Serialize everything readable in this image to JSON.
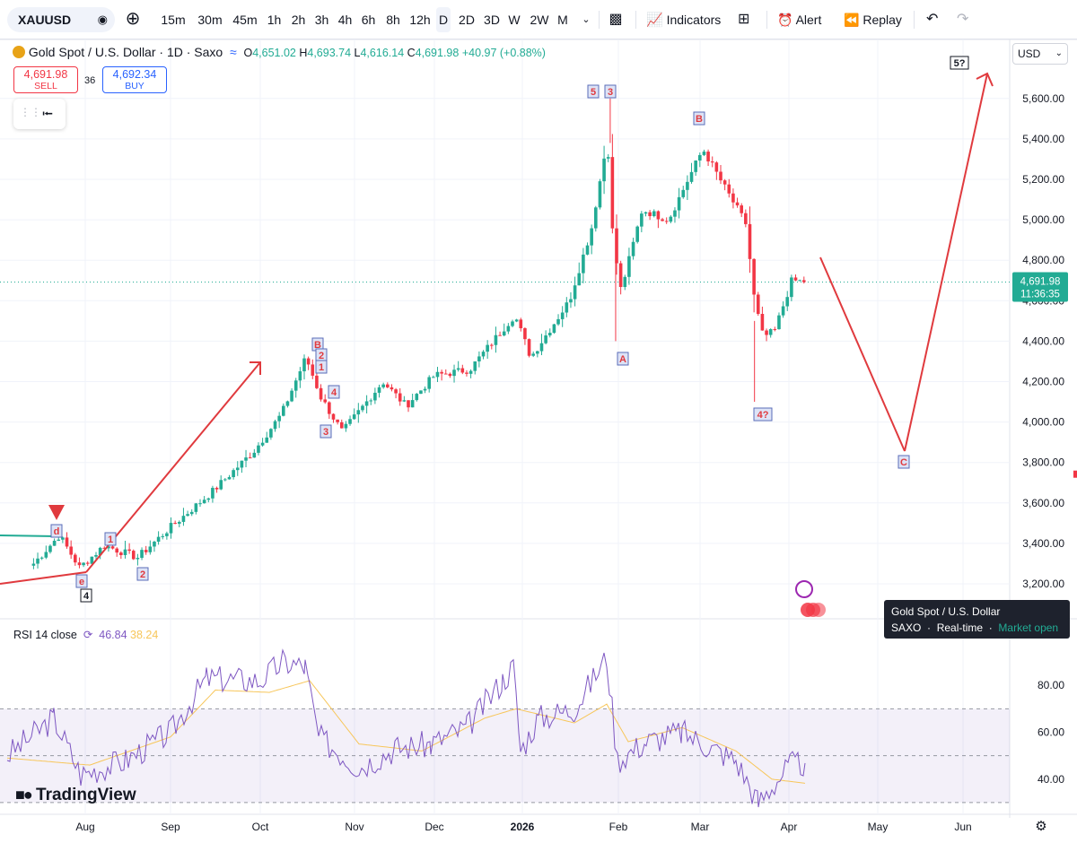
{
  "toolbar": {
    "symbol": "XAUUSD",
    "timeframes": [
      "15m",
      "30m",
      "45m",
      "1h",
      "2h",
      "3h",
      "4h",
      "6h",
      "8h",
      "12h",
      "D",
      "2D",
      "3D",
      "W",
      "2W",
      "M"
    ],
    "active_timeframe": "D",
    "indicators_label": "Indicators",
    "alert_label": "Alert",
    "replay_label": "Replay"
  },
  "legend": {
    "title": "Gold Spot / U.S. Dollar · 1D · Saxo",
    "o_label": "O",
    "o": "4,651.02",
    "h_label": "H",
    "h": "4,693.74",
    "l_label": "L",
    "l": "4,616.14",
    "c_label": "C",
    "c": "4,691.98",
    "change": "+40.97 (+0.88%)"
  },
  "trade": {
    "sell_price": "4,691.98",
    "sell_label": "SELL",
    "buy_price": "4,692.34",
    "buy_label": "BUY",
    "spread": "36"
  },
  "currency": "USD",
  "rsi": {
    "label": "RSI 14 close",
    "value": "46.84",
    "ma_value": "38.24"
  },
  "tooltip": {
    "title": "Gold Spot / U.S. Dollar",
    "source": "SAXO",
    "mode": "Real-time",
    "status": "Market open"
  },
  "current_price": {
    "price": "4,691.98",
    "countdown": "11:36:35"
  },
  "logo": "TradingView",
  "colors": {
    "up": "#22ab94",
    "down": "#f23645",
    "rsi": "#7e57c2",
    "rsi_ma": "#f7c65a",
    "wave": "#e03a3e"
  },
  "chart_data": [
    {
      "type": "candlestick",
      "title": "Gold Spot / U.S. Dollar · 1D · Saxo",
      "x_tick_labels": [
        "Aug",
        "Sep",
        "Oct",
        "Nov",
        "Dec",
        "2026",
        "Feb",
        "Mar",
        "Apr",
        "May",
        "Jun"
      ],
      "y_tick_labels": [
        "3,200.00",
        "3,400.00",
        "3,600.00",
        "3,800.00",
        "4,000.00",
        "4,200.00",
        "4,400.00",
        "4,600.00",
        "4,800.00",
        "5,000.00",
        "5,200.00",
        "5,400.00",
        "5,600.00"
      ],
      "ylim": [
        3100,
        5780
      ],
      "grid": true,
      "series": [
        {
          "name": "XAUUSD",
          "approx_close_path": [
            {
              "x": "Jul 14",
              "close": 3300
            },
            {
              "x": "Jul 23",
              "close": 3440
            },
            {
              "x": "Jul 30",
              "close": 3280
            },
            {
              "x": "Aug 8",
              "close": 3390
            },
            {
              "x": "Aug 20",
              "close": 3330
            },
            {
              "x": "Sep 1",
              "close": 3480
            },
            {
              "x": "Sep 15",
              "close": 3650
            },
            {
              "x": "Sep 30",
              "close": 3860
            },
            {
              "x": "Oct 8",
              "close": 4040
            },
            {
              "x": "Oct 16",
              "close": 4320
            },
            {
              "x": "Oct 21",
              "close": 4120
            },
            {
              "x": "Oct 28",
              "close": 3950
            },
            {
              "x": "Nov 12",
              "close": 4200
            },
            {
              "x": "Nov 21",
              "close": 4080
            },
            {
              "x": "Dec 1",
              "close": 4230
            },
            {
              "x": "Dec 12",
              "close": 4260
            },
            {
              "x": "Dec 26",
              "close": 4530
            },
            {
              "x": "Dec 31",
              "close": 4320
            },
            {
              "x": "Jan 14",
              "close": 4600
            },
            {
              "x": "Jan 22",
              "close": 4950
            },
            {
              "x": "Jan 28",
              "close": 5400
            },
            {
              "x": "Jan 30",
              "close": 4900
            },
            {
              "x": "Feb 2",
              "close": 4650
            },
            {
              "x": "Feb 10",
              "close": 5050
            },
            {
              "x": "Feb 20",
              "close": 5000
            },
            {
              "x": "Mar 2",
              "close": 5350
            },
            {
              "x": "Mar 10",
              "close": 5150
            },
            {
              "x": "Mar 17",
              "close": 4980
            },
            {
              "x": "Mar 20",
              "close": 4600
            },
            {
              "x": "Mar 23",
              "close": 4420
            },
            {
              "x": "Mar 27",
              "close": 4450
            },
            {
              "x": "Apr 2",
              "close": 4700
            },
            {
              "x": "Apr 7",
              "close": 4691.98
            }
          ]
        }
      ],
      "last_price": 4691.98,
      "annotations": [
        "d",
        "e",
        "4",
        "1",
        "2",
        "B",
        "2",
        "1",
        "4",
        "3",
        "5",
        "3",
        "A",
        "B",
        "4?",
        "C",
        "5?"
      ]
    },
    {
      "type": "line",
      "title": "RSI 14 close",
      "y_tick_labels": [
        "40.00",
        "60.00",
        "80.00"
      ],
      "bands": [
        30,
        50,
        70
      ],
      "series": [
        {
          "name": "RSI",
          "last": 46.84
        },
        {
          "name": "RSI MA",
          "last": 38.24
        }
      ]
    }
  ]
}
